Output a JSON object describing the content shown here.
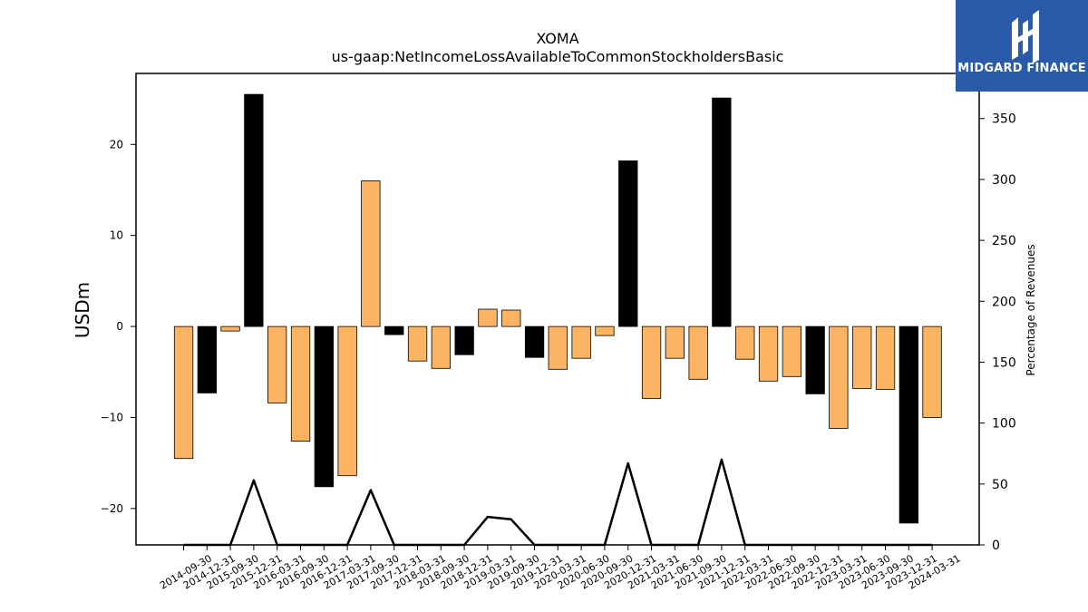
{
  "chart_data": {
    "type": "bar",
    "title": "XOMA",
    "subtitle": "us-gaap:NetIncomeLossAvailableToCommonStockholdersBasic",
    "ylabel_left": "USDm",
    "ylabel_right": "Percentage of Revenues",
    "ylim_left": [
      -24,
      27.8
    ],
    "ylim_right": [
      0,
      387
    ],
    "yticks_left": [
      -20,
      -10,
      0,
      10,
      20
    ],
    "yticks_right": [
      0,
      50,
      100,
      150,
      200,
      250,
      300,
      350
    ],
    "grid": false,
    "legend": "none",
    "categories": [
      "2014-09-30",
      "2014-12-31",
      "2015-09-30",
      "2015-12-31",
      "2016-03-31",
      "2016-09-30",
      "2016-12-31",
      "2017-03-31",
      "2017-09-30",
      "2017-12-31",
      "2018-03-31",
      "2018-09-30",
      "2018-12-31",
      "2019-03-31",
      "2019-09-30",
      "2019-12-31",
      "2020-03-31",
      "2020-06-30",
      "2020-09-30",
      "2020-12-31",
      "2021-03-31",
      "2021-06-30",
      "2021-09-30",
      "2021-12-31",
      "2022-03-31",
      "2022-06-30",
      "2022-09-30",
      "2022-12-31",
      "2023-03-31",
      "2023-06-30",
      "2023-09-30",
      "2023-12-31",
      "2024-03-31"
    ],
    "values": [
      -14.5,
      -7.3,
      -0.5,
      25.5,
      -8.4,
      -12.6,
      -17.6,
      -16.4,
      16.0,
      -0.9,
      -3.8,
      -4.6,
      -3.1,
      1.9,
      1.8,
      -3.4,
      -4.7,
      -3.5,
      -1.0,
      18.2,
      -7.9,
      -3.5,
      -5.8,
      25.1,
      -3.6,
      -6.0,
      -5.5,
      -7.4,
      -11.2,
      -6.8,
      -6.9,
      -21.6,
      -10.0
    ],
    "bar_colors": [
      "#fdb462",
      "#000000",
      "#fdb462",
      "#000000",
      "#fdb462",
      "#fdb462",
      "#000000",
      "#fdb462",
      "#fdb462",
      "#000000",
      "#fdb462",
      "#fdb462",
      "#000000",
      "#fdb462",
      "#fdb462",
      "#000000",
      "#fdb462",
      "#fdb462",
      "#fdb462",
      "#000000",
      "#fdb462",
      "#fdb462",
      "#fdb462",
      "#000000",
      "#fdb462",
      "#fdb462",
      "#fdb462",
      "#000000",
      "#fdb462",
      "#fdb462",
      "#fdb462",
      "#000000",
      "#fdb462"
    ],
    "line_series": {
      "axis": "right",
      "color": "#000000",
      "values": [
        0,
        0,
        0,
        53,
        0,
        0,
        0,
        0,
        45,
        0,
        0,
        0,
        0,
        23,
        21,
        0,
        0,
        0,
        0,
        67,
        0,
        0,
        0,
        70,
        0,
        0,
        0,
        0,
        0,
        0,
        0,
        0,
        0
      ]
    }
  },
  "logo": {
    "text": "MIDGARD FINANCE",
    "color": "#2a5bab"
  }
}
